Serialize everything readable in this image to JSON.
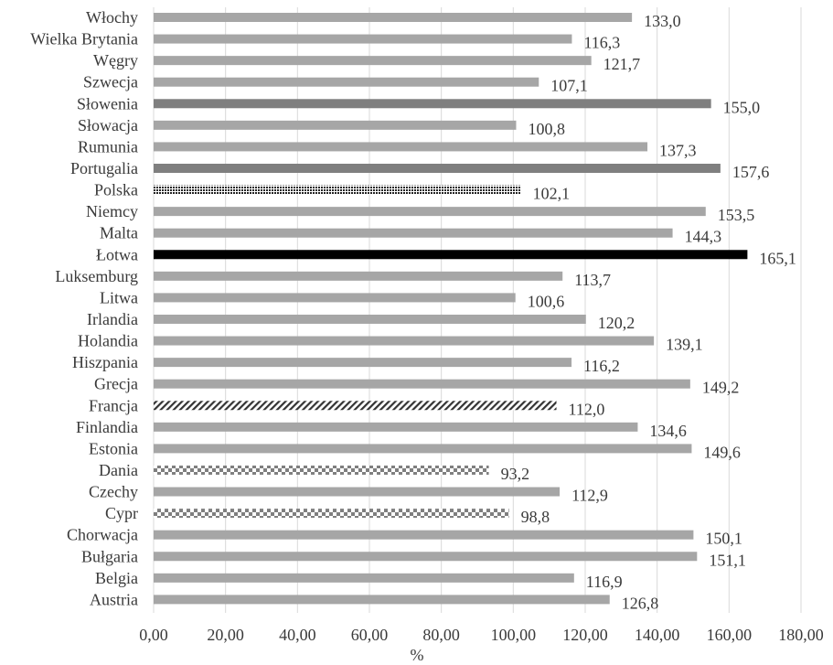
{
  "chart_data": {
    "type": "bar",
    "orientation": "horizontal",
    "title": "",
    "xlabel": "%",
    "ylabel": "",
    "xlim": [
      0,
      180
    ],
    "x_ticks": [
      {
        "value": 0,
        "label": "0,00"
      },
      {
        "value": 20,
        "label": "20,00"
      },
      {
        "value": 40,
        "label": "40,00"
      },
      {
        "value": 60,
        "label": "60,00"
      },
      {
        "value": 80,
        "label": "80,00"
      },
      {
        "value": 100,
        "label": "100,00"
      },
      {
        "value": 120,
        "label": "120,00"
      },
      {
        "value": 140,
        "label": "140,00"
      },
      {
        "value": 160,
        "label": "160,00"
      },
      {
        "value": 180,
        "label": "180,00"
      }
    ],
    "grid": "vertical",
    "legend": "none",
    "categories": [
      "Włochy",
      "Wielka Brytania",
      "Węgry",
      "Szwecja",
      "Słowenia",
      "Słowacja",
      "Rumunia",
      "Portugalia",
      "Polska",
      "Niemcy",
      "Malta",
      "Łotwa",
      "Luksemburg",
      "Litwa",
      "Irlandia",
      "Holandia",
      "Hiszpania",
      "Grecja",
      "Francja",
      "Finlandia",
      "Estonia",
      "Dania",
      "Czechy",
      "Cypr",
      "Chorwacja",
      "Bułgaria",
      "Belgia",
      "Austria"
    ],
    "values": [
      133.0,
      116.3,
      121.7,
      107.1,
      155.0,
      100.8,
      137.3,
      157.6,
      102.1,
      153.5,
      144.3,
      165.1,
      113.7,
      100.6,
      120.2,
      139.1,
      116.2,
      149.2,
      112.0,
      134.6,
      149.6,
      93.2,
      112.9,
      98.8,
      150.1,
      151.1,
      116.9,
      126.8
    ],
    "value_labels": [
      "133,0",
      "116,3",
      "121,7",
      "107,1",
      "155,0",
      "100,8",
      "137,3",
      "157,6",
      "102,1",
      "153,5",
      "144,3",
      "165,1",
      "113,7",
      "100,6",
      "120,2",
      "139,1",
      "116,2",
      "149,2",
      "112,0",
      "134,6",
      "149,6",
      "93,2",
      "112,9",
      "98,8",
      "150,1",
      "151,1",
      "116,9",
      "126,8"
    ],
    "fills": [
      "#a6a6a6",
      "#a6a6a6",
      "#a6a6a6",
      "#a6a6a6",
      "#7f7f7f",
      "#a6a6a6",
      "#a6a6a6",
      "#7f7f7f",
      "dots",
      "#a6a6a6",
      "#a6a6a6",
      "#000000",
      "#a6a6a6",
      "#a6a6a6",
      "#a6a6a6",
      "#a6a6a6",
      "#a6a6a6",
      "#a6a6a6",
      "diag",
      "#a6a6a6",
      "#a6a6a6",
      "checker",
      "#a6a6a6",
      "checker",
      "#a6a6a6",
      "#a6a6a6",
      "#a6a6a6",
      "#a6a6a6"
    ],
    "colors": {
      "bar": "#a6a6a6",
      "highlight": "#7f7f7f",
      "max": "#000000",
      "grid": "#d9d9d9",
      "text": "#3a3a3a"
    }
  }
}
